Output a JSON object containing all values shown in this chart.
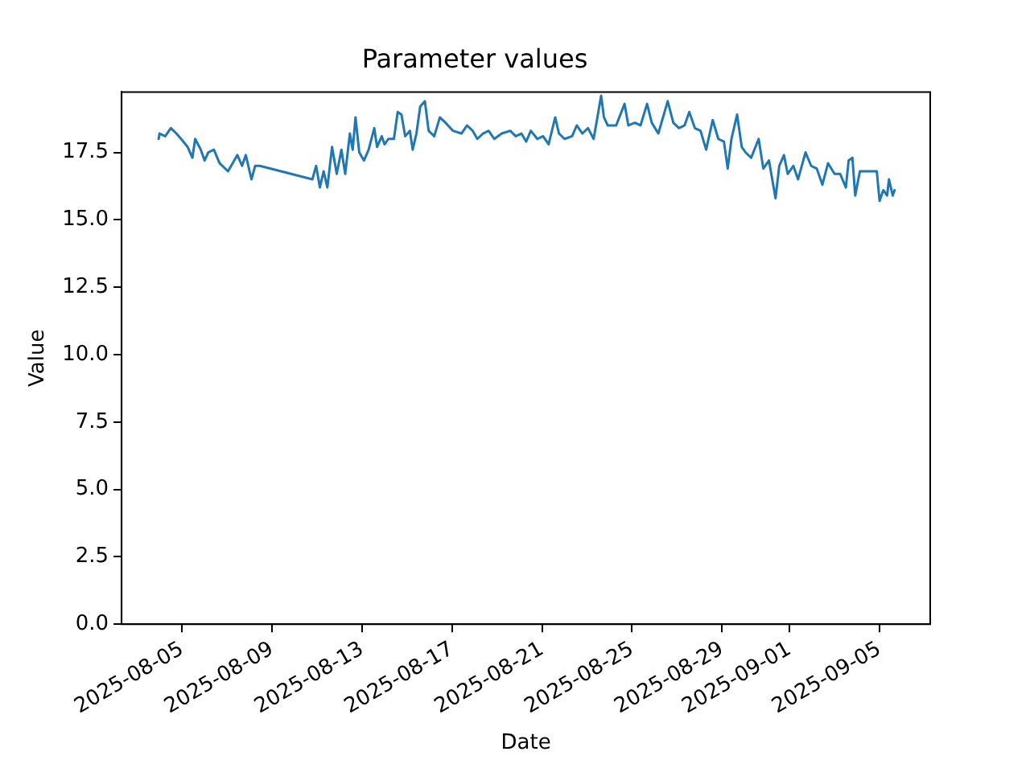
{
  "chart_data": {
    "type": "line",
    "title": "Parameter values",
    "xlabel": "Date",
    "ylabel": "Value",
    "x": [
      "2025-08-03T23:00",
      "2025-08-04T00:00",
      "2025-08-04T06:00",
      "2025-08-04T12:00",
      "2025-08-04T18:00",
      "2025-08-04T23:00",
      "2025-08-05T06:00",
      "2025-08-05T11:00",
      "2025-08-05T14:00",
      "2025-08-05T20:00",
      "2025-08-06T00:00",
      "2025-08-06T04:00",
      "2025-08-06T10:00",
      "2025-08-06T16:00",
      "2025-08-07T01:00",
      "2025-08-07T11:00",
      "2025-08-07T16:00",
      "2025-08-07T20:00",
      "2025-08-08T02:00",
      "2025-08-08T06:00",
      "2025-08-08T11:00",
      "2025-08-10T19:00",
      "2025-08-10T23:00",
      "2025-08-11T03:00",
      "2025-08-11T07:00",
      "2025-08-11T11:00",
      "2025-08-11T16:00",
      "2025-08-11T21:00",
      "2025-08-12T02:00",
      "2025-08-12T06:00",
      "2025-08-12T11:00",
      "2025-08-12T14:00",
      "2025-08-12T17:00",
      "2025-08-12T21:00",
      "2025-08-13T02:00",
      "2025-08-13T07:00",
      "2025-08-13T13:00",
      "2025-08-13T16:00",
      "2025-08-13T21:00",
      "2025-08-14T00:00",
      "2025-08-14T04:00",
      "2025-08-14T10:00",
      "2025-08-14T14:00",
      "2025-08-14T18:00",
      "2025-08-14T22:00",
      "2025-08-15T03:00",
      "2025-08-15T06:00",
      "2025-08-15T10:00",
      "2025-08-15T14:00",
      "2025-08-15T19:00",
      "2025-08-15T23:00",
      "2025-08-16T05:00",
      "2025-08-16T11:00",
      "2025-08-16T17:00",
      "2025-08-17T01:00",
      "2025-08-17T10:00",
      "2025-08-17T16:00",
      "2025-08-17T22:00",
      "2025-08-18T03:00",
      "2025-08-18T09:00",
      "2025-08-18T15:00",
      "2025-08-18T21:00",
      "2025-08-19T05:00",
      "2025-08-19T14:00",
      "2025-08-19T20:00",
      "2025-08-20T02:00",
      "2025-08-20T07:00",
      "2025-08-20T12:00",
      "2025-08-20T19:00",
      "2025-08-21T01:00",
      "2025-08-21T07:00",
      "2025-08-21T14:00",
      "2025-08-21T18:00",
      "2025-08-22T00:00",
      "2025-08-22T08:00",
      "2025-08-22T13:00",
      "2025-08-22T19:00",
      "2025-08-23T01:00",
      "2025-08-23T07:00",
      "2025-08-23T11:00",
      "2025-08-23T15:00",
      "2025-08-23T18:00",
      "2025-08-23T22:00",
      "2025-08-24T07:00",
      "2025-08-24T16:00",
      "2025-08-24T20:00",
      "2025-08-25T03:00",
      "2025-08-25T09:00",
      "2025-08-25T16:00",
      "2025-08-25T21:00",
      "2025-08-26T04:00",
      "2025-08-26T14:00",
      "2025-08-26T20:00",
      "2025-08-27T02:00",
      "2025-08-27T08:00",
      "2025-08-27T13:00",
      "2025-08-27T19:00",
      "2025-08-28T01:00",
      "2025-08-28T07:00",
      "2025-08-28T14:00",
      "2025-08-28T20:00",
      "2025-08-29T02:00",
      "2025-08-29T06:00",
      "2025-08-29T10:00",
      "2025-08-29T16:00",
      "2025-08-29T21:00",
      "2025-08-30T01:00",
      "2025-08-30T07:00",
      "2025-08-30T15:00",
      "2025-08-30T20:00",
      "2025-08-31T02:00",
      "2025-08-31T09:00",
      "2025-08-31T13:00",
      "2025-08-31T18:00",
      "2025-08-31T22:00",
      "2025-09-01T04:00",
      "2025-09-01T09:00",
      "2025-09-01T17:00",
      "2025-09-01T23:00",
      "2025-09-02T05:00",
      "2025-09-02T11:00",
      "2025-09-02T17:00",
      "2025-09-03T00:00",
      "2025-09-03T06:00",
      "2025-09-03T12:00",
      "2025-09-03T15:00",
      "2025-09-03T19:00",
      "2025-09-03T22:00",
      "2025-09-04T03:00",
      "2025-09-04T21:00",
      "2025-09-05T00:00",
      "2025-09-05T04:00",
      "2025-09-05T08:00",
      "2025-09-05T10:00",
      "2025-09-05T14:00",
      "2025-09-05T16:00"
    ],
    "series": [
      {
        "color": "#1f77b4",
        "values": [
          18.0,
          18.2,
          18.1,
          18.4,
          18.2,
          18.0,
          17.7,
          17.3,
          18.0,
          17.6,
          17.2,
          17.5,
          17.6,
          17.1,
          16.8,
          17.4,
          17.0,
          17.4,
          16.5,
          17.0,
          17.0,
          16.5,
          17.0,
          16.2,
          16.8,
          16.2,
          17.7,
          16.7,
          17.6,
          16.7,
          18.2,
          17.6,
          18.8,
          17.5,
          17.2,
          17.6,
          18.4,
          17.7,
          18.1,
          17.8,
          18.0,
          18.0,
          19.0,
          18.9,
          18.1,
          18.3,
          17.6,
          18.2,
          19.2,
          19.4,
          18.3,
          18.1,
          18.8,
          18.6,
          18.3,
          18.2,
          18.5,
          18.3,
          18.0,
          18.2,
          18.3,
          18.0,
          18.2,
          18.3,
          18.1,
          18.2,
          17.9,
          18.3,
          18.0,
          18.1,
          17.8,
          18.8,
          18.2,
          18.0,
          18.1,
          18.5,
          18.2,
          18.4,
          18.0,
          18.8,
          19.6,
          18.8,
          18.5,
          18.5,
          19.3,
          18.5,
          18.6,
          18.5,
          19.3,
          18.6,
          18.2,
          19.4,
          18.6,
          18.4,
          18.5,
          19.0,
          18.4,
          18.3,
          17.6,
          18.7,
          18.0,
          17.9,
          16.9,
          18.0,
          18.9,
          17.7,
          17.5,
          17.3,
          18.0,
          16.9,
          17.2,
          15.8,
          17.0,
          17.4,
          16.7,
          17.0,
          16.5,
          17.5,
          17.0,
          16.9,
          16.3,
          17.1,
          16.7,
          16.7,
          16.2,
          17.2,
          17.3,
          15.9,
          16.8,
          16.8,
          15.7,
          16.1,
          15.9,
          16.5,
          15.9,
          16.1
        ]
      }
    ],
    "xlim": [
      "2025-08-02T07:30",
      "2025-09-07T06:00"
    ],
    "xticks": [
      "2025-08-05",
      "2025-08-09",
      "2025-08-13",
      "2025-08-17",
      "2025-08-21",
      "2025-08-25",
      "2025-08-29",
      "2025-09-01",
      "2025-09-05"
    ],
    "ylim": [
      0,
      19.74
    ],
    "yticks": [
      {
        "value": 0,
        "label": "0.0"
      },
      {
        "value": 2.5,
        "label": "2.5"
      },
      {
        "value": 5,
        "label": "5.0"
      },
      {
        "value": 7.5,
        "label": "7.5"
      },
      {
        "value": 10,
        "label": "10.0"
      },
      {
        "value": 12.5,
        "label": "12.5"
      },
      {
        "value": 15,
        "label": "15.0"
      },
      {
        "value": 17.5,
        "label": "17.5"
      }
    ],
    "grid": false,
    "legend": false,
    "marker": "none",
    "line_style": "solid"
  }
}
